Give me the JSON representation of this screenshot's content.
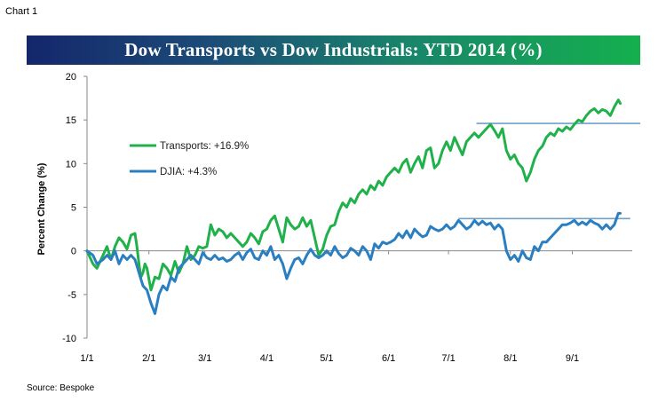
{
  "page": {
    "chart_label": "Chart 1",
    "source": "Source:  Bespoke"
  },
  "chart_data": {
    "type": "line",
    "title": "Dow Transports vs Dow Industrials: YTD 2014 (%)",
    "xlabel": "",
    "ylabel": "Percent Change (%)",
    "ylim": [
      -10,
      20
    ],
    "yticks": [
      -10,
      -5,
      0,
      5,
      10,
      15,
      20
    ],
    "xticks": [
      "1/1",
      "2/1",
      "3/1",
      "4/1",
      "5/1",
      "6/1",
      "7/1",
      "8/1",
      "9/1"
    ],
    "xtick_days": [
      0,
      31,
      59,
      90,
      120,
      151,
      181,
      212,
      243
    ],
    "x_range_days": [
      0,
      273
    ],
    "grid": false,
    "legend": "left-middle",
    "series": [
      {
        "name": "Transports: +16.9%",
        "color": "#20b14a",
        "x": [
          0,
          3,
          5,
          8,
          10,
          12,
          14,
          16,
          18,
          20,
          22,
          24,
          25,
          26,
          27,
          28,
          29,
          30,
          32,
          34,
          36,
          38,
          40,
          42,
          44,
          46,
          48,
          50,
          52,
          54,
          56,
          58,
          60,
          62,
          64,
          66,
          68,
          70,
          72,
          74,
          76,
          78,
          80,
          82,
          84,
          86,
          88,
          90,
          92,
          94,
          96,
          98,
          100,
          102,
          104,
          106,
          108,
          110,
          112,
          114,
          116,
          118,
          120,
          122,
          124,
          126,
          128,
          130,
          132,
          134,
          136,
          138,
          140,
          142,
          144,
          146,
          148,
          150,
          152,
          154,
          156,
          158,
          160,
          162,
          164,
          166,
          168,
          170,
          172,
          174,
          176,
          178,
          180,
          182,
          184,
          186,
          188,
          190,
          192,
          194,
          196,
          198,
          200,
          202,
          204,
          206,
          208,
          210,
          212,
          214,
          216,
          218,
          220,
          222,
          224,
          226,
          228,
          230,
          232,
          234,
          236,
          238,
          240,
          242,
          244,
          246,
          248,
          250,
          252,
          254,
          256,
          258,
          260,
          262,
          264,
          266,
          267
        ],
        "y": [
          0,
          -1.5,
          -2,
          -0.5,
          0.5,
          -1,
          0.5,
          1.5,
          1,
          0.2,
          1.8,
          2.0,
          0.5,
          -1.5,
          -3,
          -2.5,
          -1.5,
          -2,
          -4.5,
          -3,
          -3.2,
          -1.5,
          -2,
          -2.8,
          -1.2,
          -2.5,
          -1.5,
          0.5,
          -1.0,
          -0.5,
          0.5,
          0.3,
          0.5,
          3.0,
          1.8,
          2.5,
          2.2,
          1.5,
          2.0,
          1.5,
          1.0,
          0.5,
          1.0,
          2.0,
          1.5,
          0.8,
          2.2,
          2.5,
          3.5,
          4.0,
          2.5,
          1.0,
          3.8,
          3.0,
          2.5,
          2.8,
          3.8,
          2.8,
          3.5,
          1.5,
          -0.5,
          0.2,
          1.8,
          2.8,
          3.0,
          4.5,
          5.5,
          5.0,
          6.0,
          5.5,
          6.5,
          7.0,
          6.5,
          7.5,
          7.0,
          8.0,
          7.5,
          8.5,
          9.0,
          9.5,
          9.0,
          10.0,
          10.5,
          9.0,
          10.0,
          10.8,
          9.5,
          11.5,
          11.8,
          9.5,
          10.0,
          11.5,
          12.5,
          11.5,
          13.0,
          12.0,
          11.0,
          12.5,
          13.0,
          13.5,
          13.0,
          13.5,
          14.0,
          14.5,
          13.8,
          13.0,
          14.0,
          11.5,
          10.5,
          11.0,
          10.0,
          9.5,
          8.0,
          9.0,
          10.5,
          11.5,
          12.0,
          13.0,
          13.5,
          13.2,
          14.0,
          13.7,
          14.2,
          13.9,
          14.5,
          15.0,
          14.8,
          15.5,
          16.0,
          16.3,
          15.8,
          16.2,
          16.0,
          15.5,
          16.5,
          17.3,
          16.9
        ]
      },
      {
        "name": "DJIA: +4.3%",
        "color": "#2b7fc0",
        "x": [
          0,
          3,
          5,
          8,
          10,
          12,
          14,
          16,
          18,
          20,
          22,
          24,
          26,
          28,
          30,
          32,
          34,
          36,
          38,
          40,
          42,
          44,
          46,
          48,
          50,
          52,
          54,
          56,
          58,
          60,
          62,
          64,
          66,
          68,
          70,
          72,
          74,
          76,
          78,
          80,
          82,
          84,
          86,
          88,
          90,
          92,
          94,
          96,
          98,
          100,
          102,
          104,
          106,
          108,
          110,
          112,
          114,
          116,
          118,
          120,
          122,
          124,
          126,
          128,
          130,
          132,
          134,
          136,
          138,
          140,
          142,
          144,
          146,
          148,
          150,
          152,
          154,
          156,
          158,
          160,
          162,
          164,
          166,
          168,
          170,
          172,
          174,
          176,
          178,
          180,
          182,
          184,
          186,
          188,
          190,
          192,
          194,
          196,
          198,
          200,
          202,
          204,
          206,
          208,
          210,
          212,
          214,
          216,
          218,
          220,
          222,
          224,
          226,
          228,
          230,
          232,
          234,
          236,
          238,
          240,
          242,
          244,
          246,
          248,
          250,
          252,
          254,
          256,
          258,
          260,
          262,
          264,
          266,
          267
        ],
        "y": [
          0,
          -0.5,
          -1.5,
          -1.0,
          -0.5,
          -1.0,
          0.0,
          -1.5,
          -0.5,
          -1.0,
          -0.5,
          -1.0,
          -2.5,
          -4.0,
          -4.5,
          -6.0,
          -7.2,
          -5.0,
          -4.0,
          -4.5,
          -3.0,
          -3.5,
          -2.0,
          -1.5,
          -1.0,
          -0.5,
          -1.0,
          -1.5,
          -0.2,
          -0.8,
          -1.0,
          -0.5,
          -1.0,
          -0.8,
          -1.2,
          -1.0,
          -0.5,
          -0.2,
          -1.0,
          -0.2,
          0.2,
          -0.8,
          -1.0,
          0.0,
          -0.5,
          0.5,
          -1.0,
          -0.5,
          -1.5,
          -3.2,
          -2.0,
          -1.0,
          -0.8,
          -1.5,
          -0.5,
          0.2,
          -0.5,
          -0.8,
          -0.5,
          0.0,
          -0.5,
          0.5,
          -0.3,
          -0.8,
          -0.5,
          0.3,
          0.0,
          -0.5,
          0.5,
          0.0,
          -1.0,
          0.8,
          0.3,
          1.0,
          0.8,
          1.0,
          1.3,
          2.0,
          1.5,
          2.3,
          1.5,
          2.5,
          2.0,
          1.6,
          1.8,
          2.8,
          2.5,
          2.3,
          2.5,
          3.0,
          2.5,
          2.8,
          3.5,
          3.0,
          2.5,
          2.8,
          3.5,
          3.0,
          3.4,
          3.0,
          3.2,
          2.5,
          3.0,
          2.5,
          0.0,
          -1.0,
          -0.5,
          -1.2,
          0.0,
          -0.8,
          -1.0,
          0.5,
          0.0,
          1.0,
          1.0,
          1.5,
          2.0,
          2.5,
          3.0,
          3.0,
          3.2,
          3.5,
          3.0,
          3.3,
          3.0,
          3.5,
          3.2,
          3.0,
          2.5,
          3.0,
          2.5,
          3.0,
          4.3,
          4.3
        ]
      }
    ],
    "annotations": [
      {
        "type": "hline",
        "y": 14.6,
        "x_range_days": [
          195,
          277
        ],
        "color": "#6fa0c8"
      },
      {
        "type": "hline",
        "y": 3.7,
        "x_range_days": [
          186,
          272
        ],
        "color": "#6fa0c8"
      }
    ]
  }
}
